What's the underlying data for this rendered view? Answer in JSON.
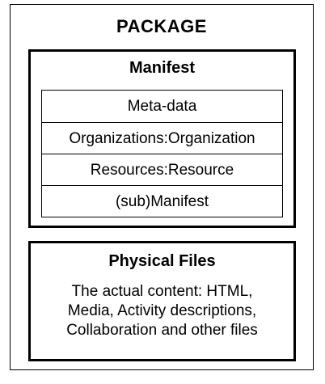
{
  "package": {
    "title": "PACKAGE"
  },
  "manifest": {
    "title": "Manifest",
    "rows": [
      "Meta-data",
      "Organizations:Organization",
      "Resources:Resource",
      "(sub)Manifest"
    ]
  },
  "physical_files": {
    "title": "Physical Files",
    "description_lines": [
      "The actual content: HTML,",
      "Media, Activity descriptions,",
      "Collaboration and other files"
    ]
  }
}
